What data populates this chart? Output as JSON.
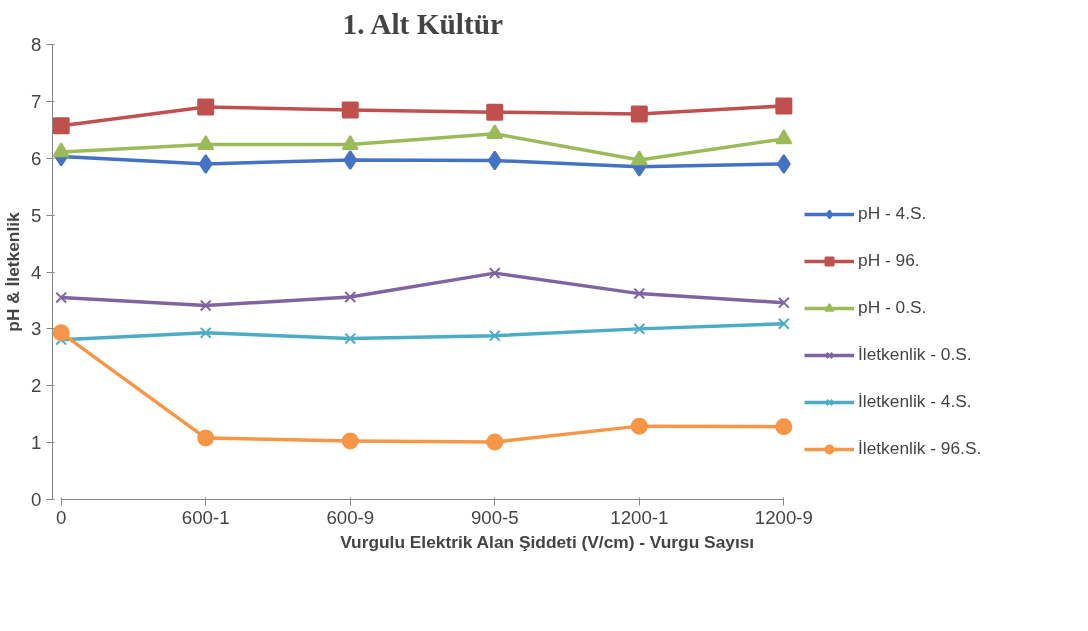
{
  "chart_data": {
    "type": "line",
    "title": "1. Alt Kültür",
    "xlabel": "Vurgulu Elektrik Alan Şiddeti (V/cm) - Vurgu Sayısı",
    "ylabel": "pH & İletkenlik",
    "categories": [
      "0",
      "600-1",
      "600-9",
      "900-5",
      "1200-1",
      "1200-9"
    ],
    "ylim": [
      0,
      8
    ],
    "yticks": [
      0,
      1,
      2,
      3,
      4,
      5,
      6,
      7,
      8
    ],
    "grid": false,
    "legend": "right",
    "series": [
      {
        "name": "pH - 4.S.",
        "color": "#4472c4",
        "marker": "diamond",
        "values": [
          6.03,
          5.9,
          5.97,
          5.96,
          5.85,
          5.9
        ]
      },
      {
        "name": "pH - 96.",
        "color": "#c0504d",
        "marker": "square",
        "values": [
          6.57,
          6.9,
          6.85,
          6.81,
          6.78,
          6.92
        ]
      },
      {
        "name": "pH - 0.S.",
        "color": "#9bbb59",
        "marker": "triangle",
        "values": [
          6.11,
          6.24,
          6.24,
          6.43,
          5.97,
          6.34
        ]
      },
      {
        "name": "İletkenlik - 0.S.",
        "color": "#8064a2",
        "marker": "cross",
        "values": [
          3.55,
          3.41,
          3.56,
          3.98,
          3.62,
          3.46
        ]
      },
      {
        "name": "İletkenlik - 4.S.",
        "color": "#4bacc6",
        "marker": "cross",
        "values": [
          2.81,
          2.93,
          2.83,
          2.88,
          3.0,
          3.09
        ]
      },
      {
        "name": "İletkenlik - 96.S.",
        "color": "#f79646",
        "marker": "circle",
        "values": [
          2.93,
          1.08,
          1.03,
          1.01,
          1.29,
          1.28
        ]
      }
    ]
  }
}
